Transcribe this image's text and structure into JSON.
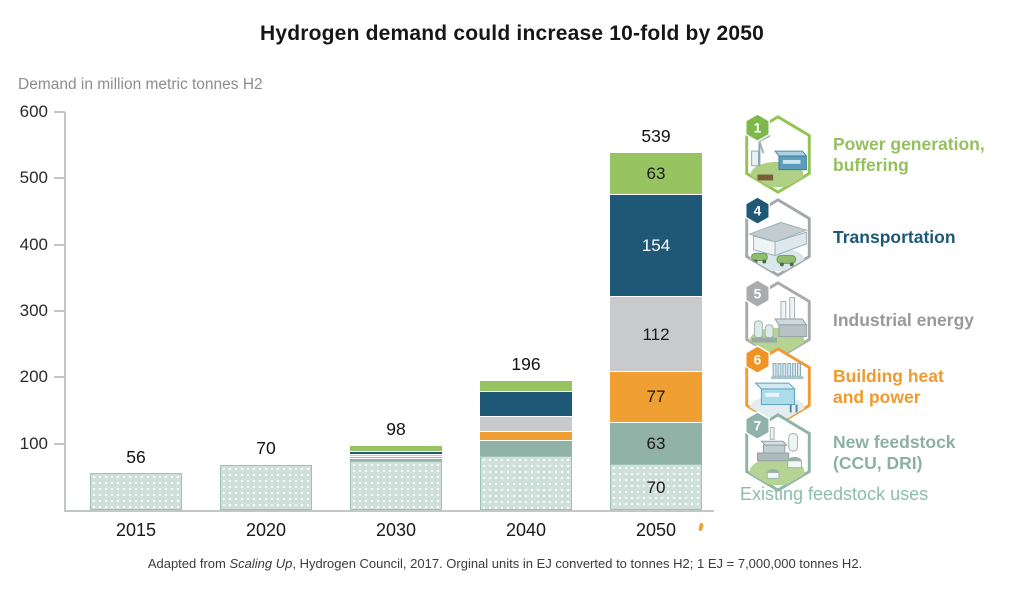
{
  "title": "Hydrogen demand could increase 10-fold by 2050",
  "y_axis_label": "Demand in million metric tonnes H2",
  "chart_data": {
    "type": "bar",
    "stacked": true,
    "title": "Hydrogen demand could increase 10-fold by 2050",
    "ylabel": "Demand in million metric tonnes H2",
    "xlabel": "",
    "ylim": [
      0,
      600
    ],
    "yticks": [
      100,
      200,
      300,
      400,
      500,
      600
    ],
    "grid": false,
    "legend_position": "right",
    "categories": [
      "2015",
      "2020",
      "2030",
      "2040",
      "2050"
    ],
    "totals": [
      56,
      70,
      98,
      196,
      539
    ],
    "segment_labels_shown_for": "2050",
    "series": [
      {
        "name": "Existing feedstock uses",
        "color": "#cfe0da",
        "pattern": "white-dots",
        "values": [
          56,
          68,
          74,
          82,
          70
        ]
      },
      {
        "name": "New feedstock (CCU, DRI)",
        "color": "#90b2a7",
        "values": [
          0,
          0,
          5,
          24,
          63
        ]
      },
      {
        "name": "Building heat and power",
        "color": "#f0a032",
        "values": [
          0,
          0,
          3,
          13,
          77
        ]
      },
      {
        "name": "Industrial energy",
        "color": "#c9cacc",
        "values": [
          0,
          0,
          3,
          22,
          112
        ]
      },
      {
        "name": "Transportation",
        "color": "#1f5876",
        "label_color": "#ffffff",
        "values": [
          0,
          2,
          4,
          38,
          154
        ]
      },
      {
        "name": "Power generation, buffering",
        "color": "#97c361",
        "values": [
          0,
          0,
          9,
          17,
          63
        ]
      }
    ]
  },
  "legend": {
    "items": [
      {
        "badge": "1",
        "lines": [
          "Power generation,",
          "buffering"
        ],
        "text_color": "#94c05e",
        "border_color": "#92c353",
        "badge_color": "#7fb84a",
        "icon": "power-generation-icon"
      },
      {
        "badge": "4",
        "lines": [
          "Transportation"
        ],
        "text_color": "#1d5878",
        "border_color": "#a2a9ac",
        "badge_color": "#1f5876",
        "icon": "transportation-icon"
      },
      {
        "badge": "5",
        "lines": [
          "Industrial energy"
        ],
        "text_color": "#97999b",
        "border_color": "#a9abad",
        "badge_color": "#a9abad",
        "icon": "industrial-energy-icon"
      },
      {
        "badge": "6",
        "lines": [
          "Building heat",
          "and power"
        ],
        "text_color": "#ef9a2f",
        "border_color": "#f09a38",
        "badge_color": "#ef9324",
        "icon": "building-heat-icon"
      },
      {
        "badge": "7",
        "lines": [
          "New feedstock",
          "(CCU, DRI)"
        ],
        "text_color": "#8cb0a5",
        "border_color": "#90b2a7",
        "badge_color": "#8fb3a8",
        "icon": "new-feedstock-icon"
      }
    ],
    "footnote": "Existing feedstock uses"
  },
  "footer": {
    "prefix": "Adapted from ",
    "italic": "Scaling Up",
    "suffix": ", Hydrogen Council, 2017. Orginal units in EJ converted to tonnes H2; 1 EJ = 7,000,000 tonnes H2."
  },
  "colors": {
    "power_generation": "#97c361",
    "transportation": "#1f5876",
    "industrial_energy": "#c9cacc",
    "building_heat": "#f0a032",
    "new_feedstock": "#90b2a7",
    "existing_feedstock": "#cfe0da",
    "axis": "#c3c6c6",
    "title_text": "#161616",
    "subtitle_text": "#8d8d8d",
    "footnote_text": "#8cbcae"
  }
}
